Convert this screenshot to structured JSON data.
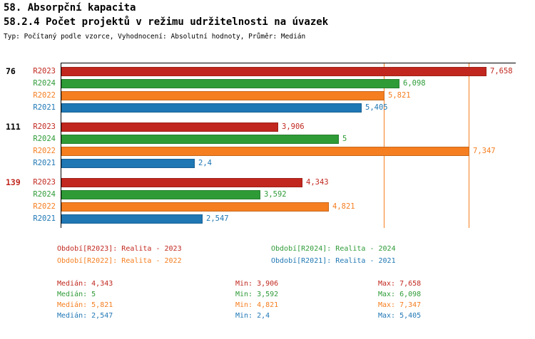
{
  "header": {
    "title1": "58. Absorpční kapacita",
    "title2": "58.2.4 Počet projektů v režimu udržitelnosti na úvazek",
    "subtitle": "Typ: Počítaný podle vzorce, Vyhodnocení: Absolutní hodnoty, Průměr: Medián"
  },
  "colors": {
    "R2023": "#c1271e",
    "R2024": "#2e9b37",
    "R2022": "#f57e20",
    "R2021": "#1f77b4",
    "axis": "#000000",
    "group_label_default": "#000000",
    "group_label_highlight": "#c1271e"
  },
  "chart_data": {
    "type": "bar",
    "orientation": "horizontal",
    "title": "58.2.4 Počet projektů v režimu udržitelnosti na úvazek",
    "xlim": [
      0,
      8.2
    ],
    "grid": false,
    "series_order": [
      "R2023",
      "R2024",
      "R2022",
      "R2021"
    ],
    "reference_lines": [
      {
        "value": 5.821,
        "series": "R2022"
      },
      {
        "value": 7.347,
        "series": "R2022"
      }
    ],
    "groups": [
      {
        "label": "76",
        "highlight": false,
        "bars": [
          {
            "series": "R2023",
            "value": 7.658,
            "value_label": "7,658"
          },
          {
            "series": "R2024",
            "value": 6.098,
            "value_label": "6,098"
          },
          {
            "series": "R2022",
            "value": 5.821,
            "value_label": "5,821"
          },
          {
            "series": "R2021",
            "value": 5.405,
            "value_label": "5,405"
          }
        ]
      },
      {
        "label": "111",
        "highlight": false,
        "bars": [
          {
            "series": "R2023",
            "value": 3.906,
            "value_label": "3,906"
          },
          {
            "series": "R2024",
            "value": 5,
            "value_label": "5"
          },
          {
            "series": "R2022",
            "value": 7.347,
            "value_label": "7,347"
          },
          {
            "series": "R2021",
            "value": 2.4,
            "value_label": "2,4"
          }
        ]
      },
      {
        "label": "139",
        "highlight": true,
        "bars": [
          {
            "series": "R2023",
            "value": 4.343,
            "value_label": "4,343"
          },
          {
            "series": "R2024",
            "value": 3.592,
            "value_label": "3,592"
          },
          {
            "series": "R2022",
            "value": 4.821,
            "value_label": "4,821"
          },
          {
            "series": "R2021",
            "value": 2.547,
            "value_label": "2,547"
          }
        ]
      }
    ]
  },
  "legend": [
    {
      "series": "R2023",
      "label": "Období[R2023]: Realita - 2023"
    },
    {
      "series": "R2024",
      "label": "Období[R2024]: Realita - 2024"
    },
    {
      "series": "R2022",
      "label": "Období[R2022]: Realita - 2022"
    },
    {
      "series": "R2021",
      "label": "Období[R2021]: Realita - 2021"
    }
  ],
  "stats": [
    {
      "series": "R2023",
      "median": "Medián: 4,343",
      "min": "Min: 3,906",
      "max": "Max: 7,658"
    },
    {
      "series": "R2024",
      "median": "Medián: 5",
      "min": "Min: 3,592",
      "max": "Max: 6,098"
    },
    {
      "series": "R2022",
      "median": "Medián: 5,821",
      "min": "Min: 4,821",
      "max": "Max: 7,347"
    },
    {
      "series": "R2021",
      "median": "Medián: 2,547",
      "min": "Min: 2,4",
      "max": "Max: 5,405"
    }
  ]
}
